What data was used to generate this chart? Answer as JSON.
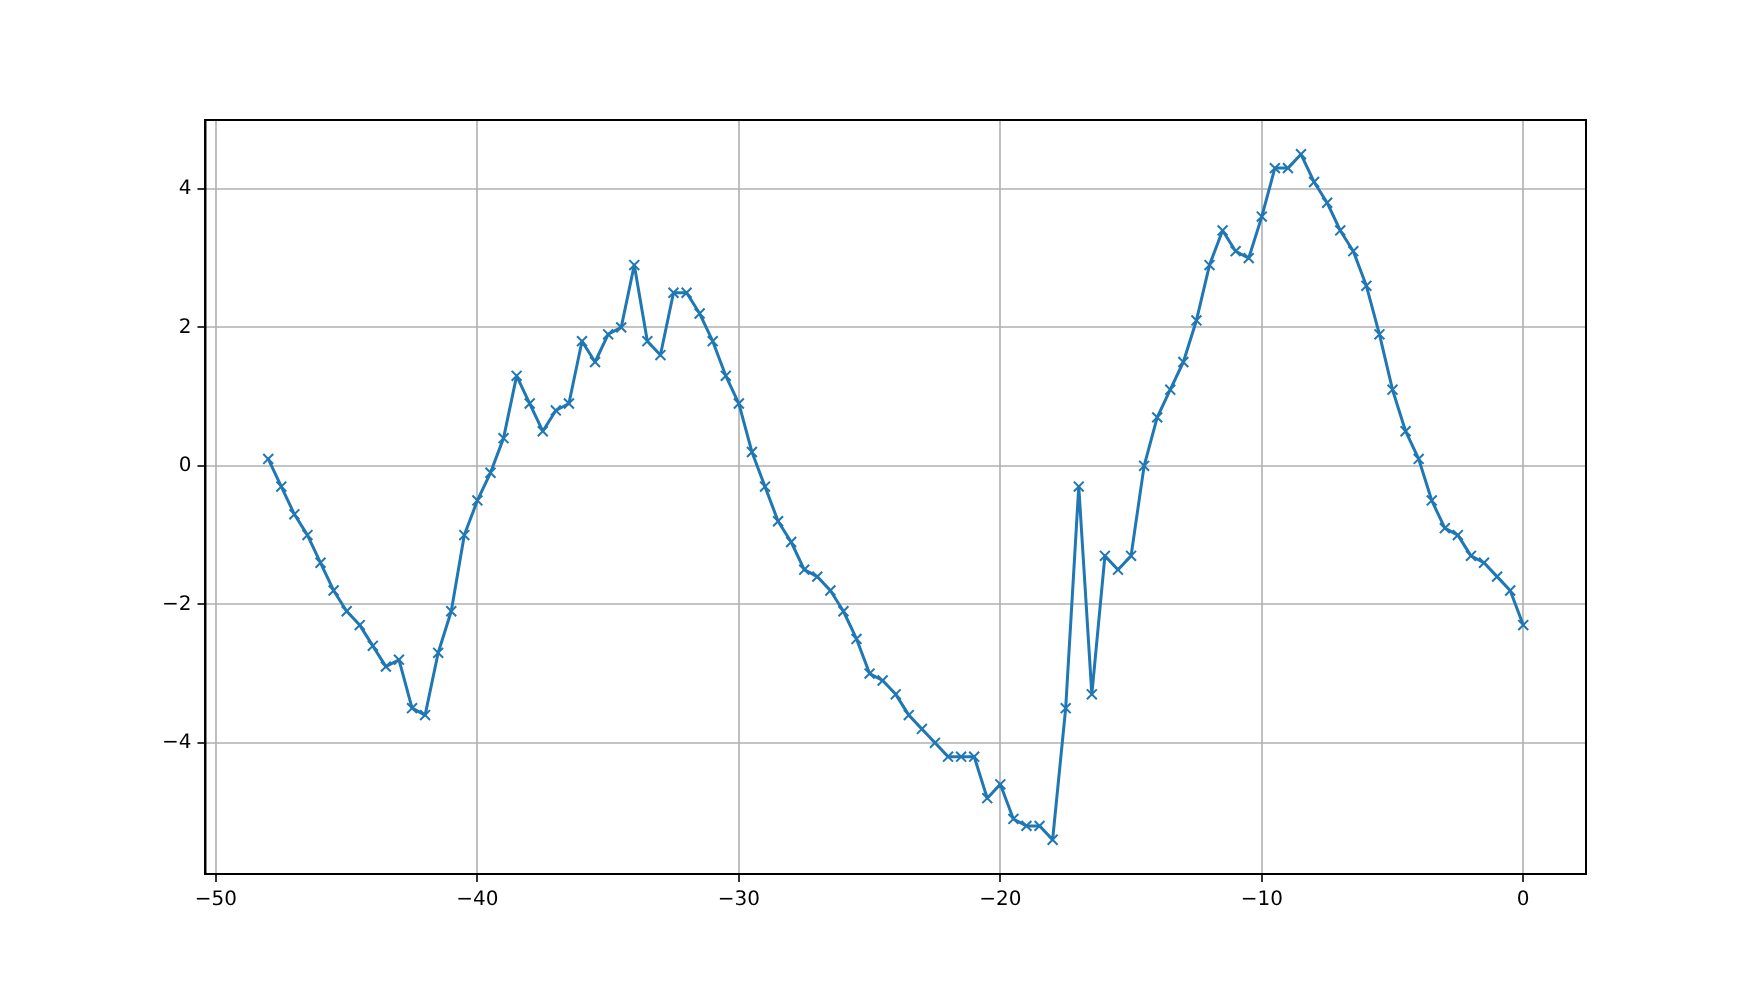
{
  "chart_data": {
    "type": "line",
    "x": [
      -48,
      -47.5,
      -47,
      -46.5,
      -46,
      -45.5,
      -45,
      -44.5,
      -44,
      -43.5,
      -43,
      -42.5,
      -42,
      -41.5,
      -41,
      -40.5,
      -40,
      -39.5,
      -39,
      -38.5,
      -38,
      -37.5,
      -37,
      -36.5,
      -36,
      -35.5,
      -35,
      -34.5,
      -34,
      -33.5,
      -33,
      -32.5,
      -32,
      -31.5,
      -31,
      -30.5,
      -30,
      -29.5,
      -29,
      -28.5,
      -28,
      -27.5,
      -27,
      -26.5,
      -26,
      -25.5,
      -25,
      -24.5,
      -24,
      -23.5,
      -23,
      -22.5,
      -22,
      -21.5,
      -21,
      -20.5,
      -20,
      -19.5,
      -19,
      -18.5,
      -18,
      -17.5,
      -17,
      -16.5,
      -16,
      -15.5,
      -15,
      -14.5,
      -14,
      -13.5,
      -13,
      -12.5,
      -12,
      -11.5,
      -11,
      -10.5,
      -10,
      -9.5,
      -9,
      -8.5,
      -8,
      -7.5,
      -7,
      -6.5,
      -6,
      -5.5,
      -5,
      -4.5,
      -4,
      -3.5,
      -3,
      -2.5,
      -2,
      -1.5,
      -1,
      -0.5,
      0
    ],
    "series": [
      {
        "color": "#1f77b4",
        "values": [
          0.1,
          -0.3,
          -0.7,
          -1.0,
          -1.4,
          -1.8,
          -2.1,
          -2.3,
          -2.6,
          -2.9,
          -2.8,
          -3.5,
          -3.6,
          -2.7,
          -2.1,
          -1.0,
          -0.5,
          -0.1,
          0.4,
          1.3,
          0.9,
          0.5,
          0.8,
          0.9,
          1.8,
          1.5,
          1.9,
          2.0,
          2.9,
          1.8,
          1.6,
          2.5,
          2.5,
          2.2,
          1.8,
          1.3,
          0.9,
          0.2,
          -0.3,
          -0.8,
          -1.1,
          -1.5,
          -1.6,
          -1.8,
          -2.1,
          -2.5,
          -3.0,
          -3.1,
          -3.3,
          -3.6,
          -3.8,
          -4.0,
          -4.2,
          -4.2,
          -4.2,
          -4.8,
          -4.6,
          -5.1,
          -5.2,
          -5.2,
          -5.4,
          -3.5,
          -0.3,
          -3.3,
          -1.3,
          -1.5,
          -1.3,
          0.0,
          0.7,
          1.1,
          1.5,
          2.1,
          2.9,
          3.4,
          3.1,
          3.0,
          3.6,
          4.3,
          4.3,
          4.5,
          4.1,
          3.8,
          3.4,
          3.1,
          2.6,
          1.9,
          1.1,
          0.5,
          0.1,
          -0.5,
          -0.9,
          -1.0,
          -1.3,
          -1.4,
          -1.6,
          -1.8,
          -2.3
        ]
      }
    ],
    "xlim": [
      -50.4,
      2.4
    ],
    "ylim": [
      -5.895,
      4.995
    ],
    "xticks": [
      -50,
      -40,
      -30,
      -20,
      -10,
      0
    ],
    "yticks": [
      -4,
      -2,
      0,
      2,
      4
    ],
    "grid": true,
    "marker": "cross",
    "line_style": "solid"
  }
}
